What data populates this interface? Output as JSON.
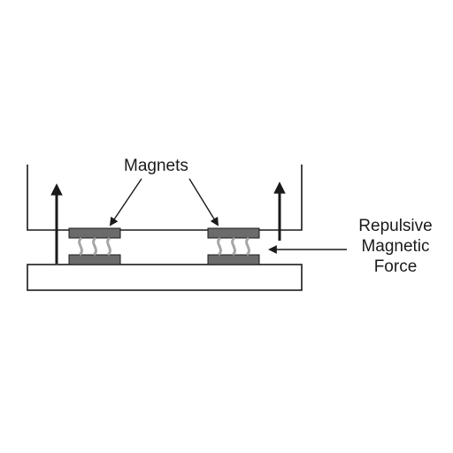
{
  "labels": {
    "magnets": "Magnets",
    "force_lines": [
      "Repulsive",
      "Magnetic",
      "Force"
    ]
  },
  "colors": {
    "outline": "#1a1a1a",
    "magnet_fill": "#6b6b6b",
    "field_lines": "#a6a6a6",
    "background": "#ffffff"
  }
}
